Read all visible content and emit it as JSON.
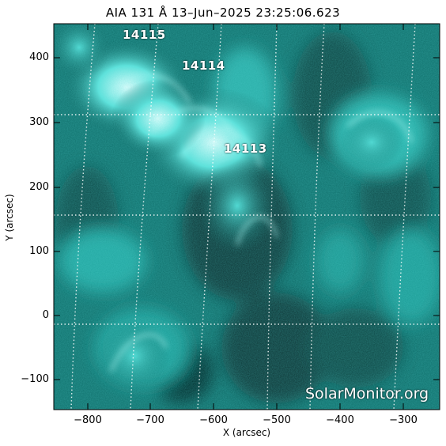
{
  "title": "AIA 131 Å 13–Jun–2025 23:25:06.623",
  "axes": {
    "xlabel": "X (arcsec)",
    "ylabel": "Y (arcsec)",
    "x_ticks": [
      "−800",
      "−700",
      "−600",
      "−500",
      "−400",
      "−300"
    ],
    "y_ticks": [
      "400",
      "300",
      "200",
      "100",
      "0",
      "−100"
    ]
  },
  "active_regions": [
    {
      "label": "14115"
    },
    {
      "label": "14114"
    },
    {
      "label": "14113"
    }
  ],
  "watermark": "SolarMonitor.org",
  "colors": {
    "background": "#ffffff",
    "image_dark": "#062b29",
    "image_mid": "#139690",
    "image_bright": "#dffffd"
  }
}
